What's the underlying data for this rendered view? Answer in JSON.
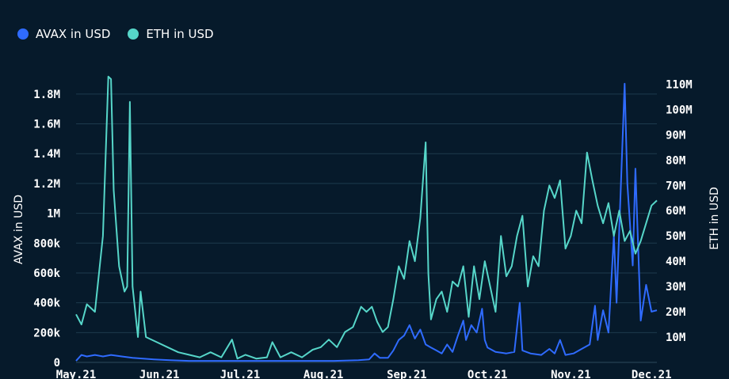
{
  "chart_data": {
    "type": "line",
    "xlabel": "",
    "ylabel_left": "AVAX in USD",
    "ylabel_right": "ETH in USD",
    "y_left_range": [
      0,
      1900000
    ],
    "y_right_range": [
      0,
      112000000
    ],
    "y_left_ticks": [
      {
        "value": 0,
        "label": "0"
      },
      {
        "value": 200000,
        "label": "200k"
      },
      {
        "value": 400000,
        "label": "400k"
      },
      {
        "value": 600000,
        "label": "600k"
      },
      {
        "value": 800000,
        "label": "800k"
      },
      {
        "value": 1000000,
        "label": "1M"
      },
      {
        "value": 1200000,
        "label": "1.2M"
      },
      {
        "value": 1400000,
        "label": "1.4M"
      },
      {
        "value": 1600000,
        "label": "1.6M"
      },
      {
        "value": 1800000,
        "label": "1.8M"
      }
    ],
    "y_right_ticks": [
      {
        "value": 10000000,
        "label": "10M"
      },
      {
        "value": 20000000,
        "label": "20M"
      },
      {
        "value": 30000000,
        "label": "30M"
      },
      {
        "value": 40000000,
        "label": "40M"
      },
      {
        "value": 50000000,
        "label": "50M"
      },
      {
        "value": 60000000,
        "label": "60M"
      },
      {
        "value": 70000000,
        "label": "70M"
      },
      {
        "value": 80000000,
        "label": "80M"
      },
      {
        "value": 90000000,
        "label": "90M"
      },
      {
        "value": 100000000,
        "label": "100M"
      },
      {
        "value": 110000000,
        "label": "110M"
      }
    ],
    "x_range": [
      "2021-05-01",
      "2021-12-03"
    ],
    "x_ticks": [
      {
        "date": "2021-05-01",
        "label": "May.21"
      },
      {
        "date": "2021-06-01",
        "label": "Jun.21"
      },
      {
        "date": "2021-07-01",
        "label": "Jul.21"
      },
      {
        "date": "2021-08-01",
        "label": "Aug.21"
      },
      {
        "date": "2021-09-01",
        "label": "Sep.21"
      },
      {
        "date": "2021-10-01",
        "label": "Oct.21"
      },
      {
        "date": "2021-11-01",
        "label": "Nov.21"
      },
      {
        "date": "2021-12-01",
        "label": "Dec.21"
      }
    ],
    "grid": true,
    "legend_position": "top-left",
    "series": [
      {
        "name": "AVAX in USD",
        "axis": "left",
        "color": "#2f6bff",
        "points": [
          [
            "2021-05-01",
            10000
          ],
          [
            "2021-05-03",
            50000
          ],
          [
            "2021-05-05",
            40000
          ],
          [
            "2021-05-08",
            50000
          ],
          [
            "2021-05-11",
            40000
          ],
          [
            "2021-05-14",
            50000
          ],
          [
            "2021-05-18",
            40000
          ],
          [
            "2021-05-22",
            30000
          ],
          [
            "2021-05-26",
            25000
          ],
          [
            "2021-05-30",
            20000
          ],
          [
            "2021-06-05",
            15000
          ],
          [
            "2021-06-12",
            10000
          ],
          [
            "2021-06-20",
            10000
          ],
          [
            "2021-06-28",
            10000
          ],
          [
            "2021-07-06",
            10000
          ],
          [
            "2021-07-15",
            10000
          ],
          [
            "2021-07-25",
            10000
          ],
          [
            "2021-08-05",
            10000
          ],
          [
            "2021-08-14",
            15000
          ],
          [
            "2021-08-18",
            20000
          ],
          [
            "2021-08-20",
            60000
          ],
          [
            "2021-08-22",
            30000
          ],
          [
            "2021-08-25",
            30000
          ],
          [
            "2021-08-27",
            80000
          ],
          [
            "2021-08-29",
            150000
          ],
          [
            "2021-08-31",
            180000
          ],
          [
            "2021-09-02",
            250000
          ],
          [
            "2021-09-04",
            160000
          ],
          [
            "2021-09-06",
            220000
          ],
          [
            "2021-09-08",
            120000
          ],
          [
            "2021-09-10",
            100000
          ],
          [
            "2021-09-12",
            80000
          ],
          [
            "2021-09-14",
            60000
          ],
          [
            "2021-09-16",
            120000
          ],
          [
            "2021-09-18",
            70000
          ],
          [
            "2021-09-20",
            180000
          ],
          [
            "2021-09-22",
            280000
          ],
          [
            "2021-09-23",
            150000
          ],
          [
            "2021-09-25",
            250000
          ],
          [
            "2021-09-27",
            200000
          ],
          [
            "2021-09-29",
            360000
          ],
          [
            "2021-09-30",
            150000
          ],
          [
            "2021-10-01",
            100000
          ],
          [
            "2021-10-04",
            70000
          ],
          [
            "2021-10-08",
            60000
          ],
          [
            "2021-10-11",
            70000
          ],
          [
            "2021-10-13",
            400000
          ],
          [
            "2021-10-14",
            80000
          ],
          [
            "2021-10-17",
            60000
          ],
          [
            "2021-10-21",
            50000
          ],
          [
            "2021-10-24",
            90000
          ],
          [
            "2021-10-26",
            60000
          ],
          [
            "2021-10-28",
            150000
          ],
          [
            "2021-10-30",
            50000
          ],
          [
            "2021-11-02",
            60000
          ],
          [
            "2021-11-05",
            90000
          ],
          [
            "2021-11-08",
            120000
          ],
          [
            "2021-11-10",
            380000
          ],
          [
            "2021-11-11",
            150000
          ],
          [
            "2021-11-13",
            350000
          ],
          [
            "2021-11-15",
            200000
          ],
          [
            "2021-11-17",
            850000
          ],
          [
            "2021-11-18",
            400000
          ],
          [
            "2021-11-21",
            1870000
          ],
          [
            "2021-11-22",
            1200000
          ],
          [
            "2021-11-24",
            650000
          ],
          [
            "2021-11-25",
            1300000
          ],
          [
            "2021-11-27",
            280000
          ],
          [
            "2021-11-29",
            520000
          ],
          [
            "2021-12-01",
            340000
          ],
          [
            "2021-12-03",
            350000
          ]
        ]
      },
      {
        "name": "ETH in USD",
        "axis": "right",
        "color": "#56d6c9",
        "points": [
          [
            "2021-05-01",
            19000000
          ],
          [
            "2021-05-03",
            15000000
          ],
          [
            "2021-05-05",
            23000000
          ],
          [
            "2021-05-08",
            20000000
          ],
          [
            "2021-05-11",
            50000000
          ],
          [
            "2021-05-13",
            113000000
          ],
          [
            "2021-05-14",
            112000000
          ],
          [
            "2021-05-15",
            68000000
          ],
          [
            "2021-05-17",
            38000000
          ],
          [
            "2021-05-19",
            28000000
          ],
          [
            "2021-05-20",
            30000000
          ],
          [
            "2021-05-21",
            103000000
          ],
          [
            "2021-05-22",
            30000000
          ],
          [
            "2021-05-24",
            10000000
          ],
          [
            "2021-05-25",
            28000000
          ],
          [
            "2021-05-27",
            10000000
          ],
          [
            "2021-05-31",
            8000000
          ],
          [
            "2021-06-04",
            6000000
          ],
          [
            "2021-06-08",
            4000000
          ],
          [
            "2021-06-12",
            3000000
          ],
          [
            "2021-06-16",
            2000000
          ],
          [
            "2021-06-20",
            4000000
          ],
          [
            "2021-06-24",
            2000000
          ],
          [
            "2021-06-28",
            9000000
          ],
          [
            "2021-06-30",
            1500000
          ],
          [
            "2021-07-03",
            3000000
          ],
          [
            "2021-07-07",
            1500000
          ],
          [
            "2021-07-11",
            2000000
          ],
          [
            "2021-07-13",
            8000000
          ],
          [
            "2021-07-16",
            2000000
          ],
          [
            "2021-07-20",
            4000000
          ],
          [
            "2021-07-24",
            2000000
          ],
          [
            "2021-07-28",
            5000000
          ],
          [
            "2021-07-31",
            6000000
          ],
          [
            "2021-08-03",
            9000000
          ],
          [
            "2021-08-06",
            6000000
          ],
          [
            "2021-08-09",
            12000000
          ],
          [
            "2021-08-12",
            14000000
          ],
          [
            "2021-08-15",
            22000000
          ],
          [
            "2021-08-17",
            20000000
          ],
          [
            "2021-08-19",
            22000000
          ],
          [
            "2021-08-21",
            16000000
          ],
          [
            "2021-08-23",
            12000000
          ],
          [
            "2021-08-25",
            14000000
          ],
          [
            "2021-08-27",
            25000000
          ],
          [
            "2021-08-29",
            38000000
          ],
          [
            "2021-08-31",
            33000000
          ],
          [
            "2021-09-02",
            48000000
          ],
          [
            "2021-09-04",
            40000000
          ],
          [
            "2021-09-06",
            57000000
          ],
          [
            "2021-09-08",
            87000000
          ],
          [
            "2021-09-09",
            35000000
          ],
          [
            "2021-09-10",
            17000000
          ],
          [
            "2021-09-12",
            25000000
          ],
          [
            "2021-09-14",
            28000000
          ],
          [
            "2021-09-16",
            20000000
          ],
          [
            "2021-09-18",
            32000000
          ],
          [
            "2021-09-20",
            30000000
          ],
          [
            "2021-09-22",
            38000000
          ],
          [
            "2021-09-24",
            18000000
          ],
          [
            "2021-09-26",
            38000000
          ],
          [
            "2021-09-28",
            25000000
          ],
          [
            "2021-09-30",
            40000000
          ],
          [
            "2021-10-02",
            30000000
          ],
          [
            "2021-10-04",
            20000000
          ],
          [
            "2021-10-06",
            50000000
          ],
          [
            "2021-10-08",
            34000000
          ],
          [
            "2021-10-10",
            38000000
          ],
          [
            "2021-10-12",
            50000000
          ],
          [
            "2021-10-14",
            58000000
          ],
          [
            "2021-10-16",
            30000000
          ],
          [
            "2021-10-18",
            42000000
          ],
          [
            "2021-10-20",
            38000000
          ],
          [
            "2021-10-22",
            60000000
          ],
          [
            "2021-10-24",
            70000000
          ],
          [
            "2021-10-26",
            65000000
          ],
          [
            "2021-10-28",
            72000000
          ],
          [
            "2021-10-30",
            45000000
          ],
          [
            "2021-11-01",
            50000000
          ],
          [
            "2021-11-03",
            60000000
          ],
          [
            "2021-11-05",
            55000000
          ],
          [
            "2021-11-07",
            83000000
          ],
          [
            "2021-11-09",
            72000000
          ],
          [
            "2021-11-11",
            62000000
          ],
          [
            "2021-11-13",
            55000000
          ],
          [
            "2021-11-15",
            63000000
          ],
          [
            "2021-11-17",
            50000000
          ],
          [
            "2021-11-19",
            60000000
          ],
          [
            "2021-11-21",
            48000000
          ],
          [
            "2021-11-23",
            52000000
          ],
          [
            "2021-11-25",
            43000000
          ],
          [
            "2021-11-27",
            48000000
          ],
          [
            "2021-11-29",
            55000000
          ],
          [
            "2021-12-01",
            62000000
          ],
          [
            "2021-12-03",
            64000000
          ]
        ]
      }
    ]
  }
}
